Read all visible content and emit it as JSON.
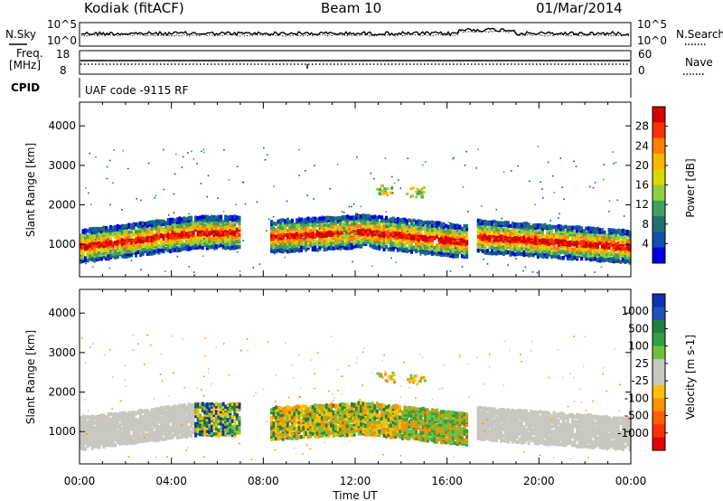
{
  "header": {
    "title": "Kodiak (fitACF)",
    "beam": "Beam 10",
    "date": "01/Mar/2014"
  },
  "top_panels": {
    "nsky_label": "N.Sky",
    "nsearch_label": "N.Search",
    "noise_ticks": [
      "10^5",
      "10^0"
    ],
    "freq_label_1": "Freq.",
    "freq_label_2": "[MHz]",
    "freq_ticks": [
      "18",
      "8"
    ],
    "nave_label": "Nave",
    "nave_ticks": [
      "60",
      "0"
    ],
    "cpid_label": "CPID",
    "cpid_text": "UAF code -9115 RF"
  },
  "chart_data": [
    {
      "type": "heatmap",
      "title": "",
      "ylabel": "Slant Range [km]",
      "xlabel": "Time UT",
      "ylim": [
        180,
        4600
      ],
      "yticks": [
        "1000",
        "2000",
        "3000",
        "4000"
      ],
      "xticks": [
        "00:00",
        "04:00",
        "08:00",
        "12:00",
        "16:00",
        "20:00",
        "00:00"
      ],
      "colorbar_label": "Power [dB]",
      "colorbar_ticks": [
        "28",
        "24",
        "20",
        "16",
        "12",
        "8",
        "4"
      ],
      "colorbar_colors": [
        "#d40000",
        "#ff3000",
        "#ff8000",
        "#ffb400",
        "#d8d800",
        "#90d040",
        "#40a060",
        "#207070",
        "#1050b0",
        "#0000e0"
      ]
    },
    {
      "type": "heatmap",
      "title": "",
      "ylabel": "Slant Range [km]",
      "xlabel": "Time UT",
      "ylim": [
        180,
        4600
      ],
      "yticks": [
        "1000",
        "2000",
        "3000",
        "4000"
      ],
      "xticks": [
        "00:00",
        "04:00",
        "08:00",
        "12:00",
        "16:00",
        "20:00",
        "00:00"
      ],
      "colorbar_label": "Velocity [m s-1]",
      "colorbar_ticks": [
        "1000",
        "500",
        "100",
        "25",
        "-25",
        "-100",
        "-500",
        "-1000"
      ],
      "colorbar_colors": [
        "#1030b0",
        "#2050c0",
        "#208040",
        "#30a040",
        "#70c040",
        "#c8c8c0",
        "#c8c8c0",
        "#ffc000",
        "#ff9000",
        "#ff6000",
        "#ff3000",
        "#e00000"
      ]
    }
  ]
}
